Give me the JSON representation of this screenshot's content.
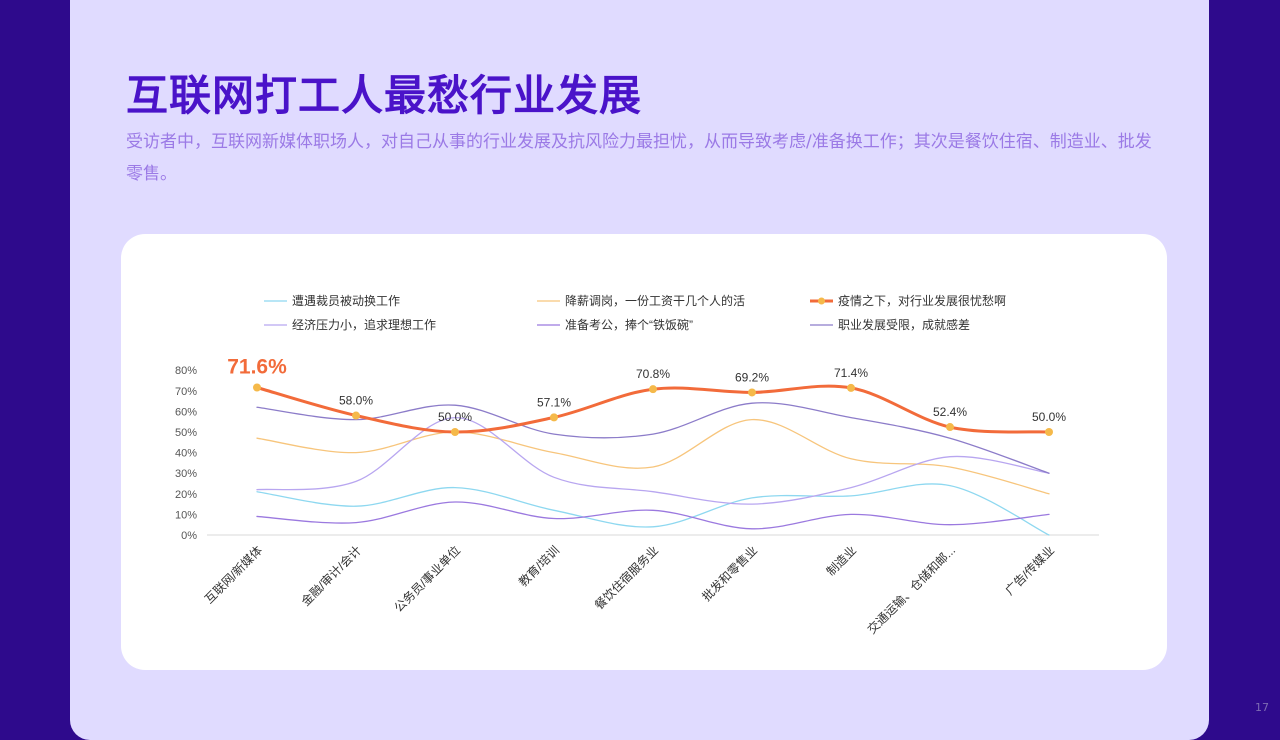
{
  "slide": {
    "title": "互联网打工人最愁行业发展",
    "subtitle": "受访者中，互联网新媒体职场人，对自己从事的行业发展及抗风险力最担忧，从而导致考虑/准备换工作；其次是餐饮住宿、制造业、批发零售。",
    "page_number": "17"
  },
  "colors": {
    "background": "#2e0a8c",
    "panel": "#e0dbff",
    "title": "#4a13c9",
    "subtitle": "#9b7ae6",
    "highlight": "#f26b3a",
    "marker": "#f5b94a"
  },
  "chart_data": {
    "type": "line",
    "smooth": true,
    "legend_position": "top",
    "categories": [
      "互联网/新媒体",
      "金融/审计/会计",
      "公务员/事业单位",
      "教育/培训",
      "餐饮住宿服务业",
      "批发和零售业",
      "制造业",
      "交通运输、仓储和邮...",
      "广告/传媒业"
    ],
    "ylim": [
      0,
      80
    ],
    "yticks": [
      "0%",
      "10%",
      "20%",
      "30%",
      "40%",
      "50%",
      "60%",
      "70%",
      "80%"
    ],
    "series": [
      {
        "name": "遭遇裁员被动换工作",
        "color": "#8ed8f0",
        "values": [
          21,
          14,
          23,
          12,
          4,
          18,
          19,
          24,
          0
        ]
      },
      {
        "name": "降薪调岗，一份工资干几个人的活",
        "color": "#f7c57c",
        "values": [
          47,
          40,
          50,
          40,
          33,
          56,
          37,
          33,
          20
        ]
      },
      {
        "name": "疫情之下，对行业发展很忧愁啊",
        "color": "#f26b3a",
        "highlight": true,
        "values": [
          71.6,
          58.0,
          50.0,
          57.1,
          70.8,
          69.2,
          71.4,
          52.4,
          50.0
        ],
        "labels": [
          "71.6%",
          "58.0%",
          "50.0%",
          "57.1%",
          "70.8%",
          "69.2%",
          "71.4%",
          "52.4%",
          "50.0%"
        ]
      },
      {
        "name": "经济压力小，追求理想工作",
        "color": "#b8a6f0",
        "values": [
          22,
          26,
          57,
          28,
          21,
          15,
          23,
          38,
          30
        ]
      },
      {
        "name": "准备考公，捧个“铁饭碗”",
        "color": "#9b79df",
        "values": [
          9,
          6,
          16,
          8,
          12,
          3,
          10,
          5,
          10
        ]
      },
      {
        "name": "职业发展受限，成就感差",
        "color": "#8c7cc9",
        "values": [
          62,
          56,
          63,
          49,
          49,
          64,
          57,
          47,
          30
        ]
      }
    ]
  }
}
